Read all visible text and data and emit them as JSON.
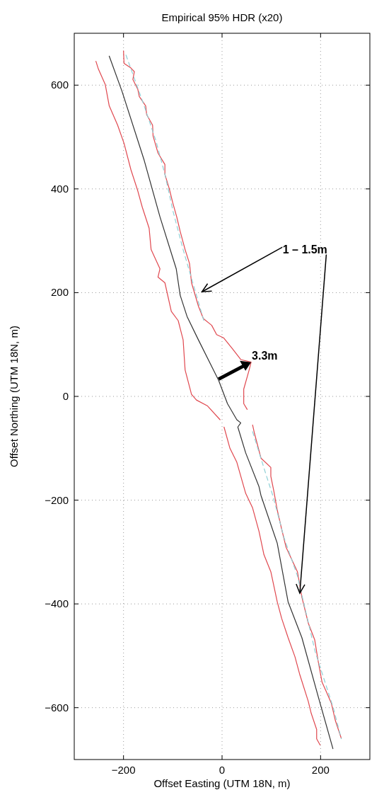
{
  "chart_data": {
    "type": "line",
    "title": "Empirical 95% HDR (x20)",
    "xlabel": "Offset Easting (UTM 18N, m)",
    "ylabel": "Offset Northing (UTM 18N, m)",
    "xlim": [
      -300,
      300
    ],
    "ylim": [
      -700,
      700
    ],
    "xticks": [
      {
        "value": -200,
        "label": "−200"
      },
      0,
      200
    ],
    "yticks": [
      {
        "value": -600,
        "label": "−600"
      },
      {
        "value": -400,
        "label": "−400"
      },
      {
        "value": -200,
        "label": "−200"
      },
      0,
      200,
      400,
      600
    ],
    "grid": true,
    "series": [
      {
        "color": "#333333",
        "line_style": "solid",
        "x": [
          -229,
          -203,
          -158,
          -126,
          -93,
          -85,
          -71,
          -48,
          -7,
          11,
          30,
          38,
          32,
          48,
          75,
          79,
          112,
          134,
          162,
          195,
          225
        ],
        "values": [
          656,
          588,
          455,
          346,
          246,
          195,
          154,
          109,
          31,
          -14,
          -45,
          -51,
          -59,
          -109,
          -174,
          -191,
          -283,
          -396,
          -465,
          -578,
          -679
        ]
      },
      {
        "color": "#e0484f",
        "line_style": "solid",
        "x": [
          -256,
          -251,
          -237,
          -229,
          -212,
          -199,
          -185,
          -171,
          -162,
          -148,
          -144,
          -126,
          -130,
          -116,
          -103,
          -89,
          -79,
          -75,
          -62,
          -52,
          -30,
          -4,
          null,
          4,
          16,
          30,
          48,
          62,
          75,
          85,
          99,
          112,
          121,
          134,
          148,
          158,
          175,
          181,
          192,
          192,
          199
        ],
        "values": [
          646,
          631,
          601,
          560,
          523,
          488,
          437,
          396,
          365,
          324,
          283,
          246,
          230,
          219,
          164,
          146,
          109,
          51,
          4,
          -7,
          -18,
          -45,
          null,
          -59,
          -100,
          -127,
          -187,
          -215,
          -260,
          -305,
          -338,
          -396,
          -428,
          -465,
          -502,
          -537,
          -588,
          -611,
          -642,
          -660,
          -672
        ]
      },
      {
        "color": "#e0484f",
        "line_style": "solid",
        "x": [
          -200,
          -199,
          -185,
          -178,
          -181,
          -171,
          -168,
          -155,
          -153,
          -141,
          -140,
          -130,
          -116,
          -116,
          -107,
          -100,
          -92,
          -85,
          -75,
          -66,
          -62,
          -48,
          -38,
          -21,
          -11,
          3,
          21,
          38,
          59,
          55,
          44,
          44,
          51,
          null,
          62,
          66,
          79,
          99,
          99,
          105,
          112,
          121,
          130,
          153,
          162,
          175,
          188,
          195,
          203,
          212,
          222,
          230,
          242
        ],
        "values": [
          666,
          642,
          633,
          626,
          611,
          592,
          578,
          560,
          543,
          523,
          502,
          469,
          447,
          428,
          400,
          373,
          346,
          318,
          283,
          256,
          219,
          174,
          150,
          137,
          119,
          113,
          92,
          71,
          66,
          51,
          14,
          -14,
          -25,
          null,
          -55,
          -72,
          -119,
          -137,
          -154,
          -182,
          -219,
          -256,
          -291,
          -338,
          -387,
          -437,
          -469,
          -510,
          -551,
          -570,
          -592,
          -625,
          -659
        ]
      },
      {
        "color": "#8fd0d6",
        "line_style": "dashed",
        "x": [
          -195,
          -175,
          -158,
          -134,
          -116,
          -99,
          -79,
          -52,
          -37,
          null,
          62,
          89,
          103,
          126,
          153,
          162,
          189,
          226,
          242
        ],
        "values": [
          658,
          605,
          560,
          492,
          428,
          355,
          283,
          195,
          146,
          null,
          -68,
          -150,
          -191,
          -273,
          -346,
          -383,
          -492,
          -601,
          -660
        ]
      }
    ],
    "annotations": [
      "1 – 1.5m",
      {
        "text": "3.3m",
        "x": 59,
        "y": 66
      }
    ]
  }
}
